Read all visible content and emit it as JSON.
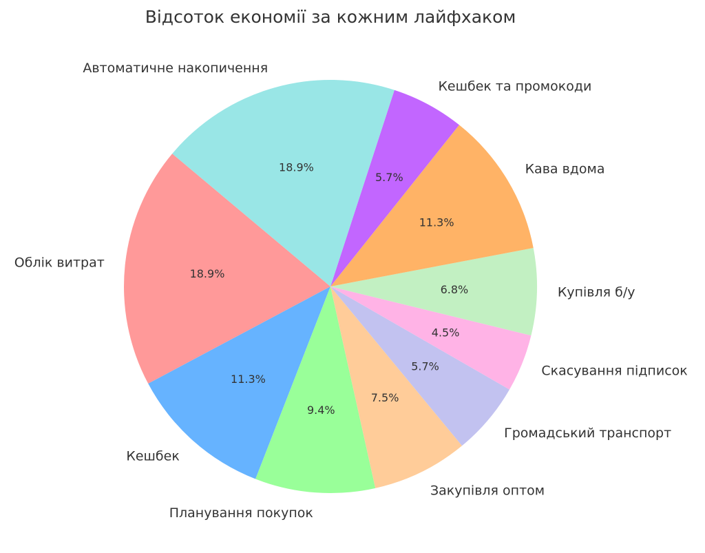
{
  "chart_data": {
    "type": "pie",
    "title": "Відсоток економії за кожним лайфхаком",
    "start_angle_deg": 140,
    "direction": "counterclockwise",
    "slices": [
      {
        "label": "Облік витрат",
        "value": 18.9,
        "pct_label": "18.9%",
        "color": "#ff9999"
      },
      {
        "label": "Кешбек",
        "value": 11.3,
        "pct_label": "11.3%",
        "color": "#66b3ff"
      },
      {
        "label": "Планування покупок",
        "value": 9.4,
        "pct_label": "9.4%",
        "color": "#99ff99"
      },
      {
        "label": "Закупівля оптом",
        "value": 7.5,
        "pct_label": "7.5%",
        "color": "#ffcc99"
      },
      {
        "label": "Громадський транспорт",
        "value": 5.7,
        "pct_label": "5.7%",
        "color": "#c2c2f0"
      },
      {
        "label": "Скасування підписок",
        "value": 4.5,
        "pct_label": "4.5%",
        "color": "#ffb3e6"
      },
      {
        "label": "Купівля б/у",
        "value": 6.8,
        "pct_label": "6.8%",
        "color": "#c2f0c2"
      },
      {
        "label": "Кава вдома",
        "value": 11.3,
        "pct_label": "11.3%",
        "color": "#ffb366"
      },
      {
        "label": "Кешбек та промокоди",
        "value": 5.7,
        "pct_label": "5.7%",
        "color": "#c266ff"
      },
      {
        "label": "Автоматичне накопичення",
        "value": 18.9,
        "pct_label": "18.9%",
        "color": "#99e6e6"
      }
    ]
  }
}
